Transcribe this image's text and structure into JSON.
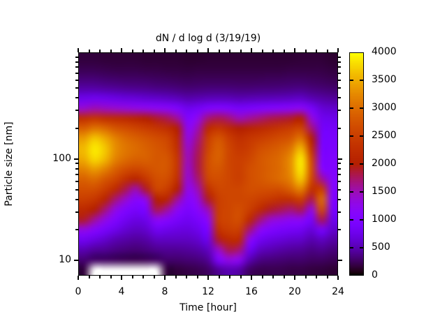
{
  "title": "dN / d log d (3/19/19)",
  "axes": {
    "x": {
      "label": "Time [hour]",
      "min": 0,
      "max": 24,
      "major_ticks": [
        0,
        4,
        8,
        12,
        16,
        20,
        24
      ],
      "minor_step": 1
    },
    "y": {
      "label": "Particle size [nm]",
      "scale": "log",
      "log_min_exp": 0.85,
      "log_max_exp": 3.05,
      "major_ticks": [
        10,
        100
      ],
      "minor_ticks": [
        20,
        30,
        40,
        50,
        60,
        70,
        80,
        90,
        200,
        300,
        400,
        500,
        600,
        700,
        800,
        900,
        1000
      ]
    }
  },
  "colorbar": {
    "min": 0,
    "max": 4000,
    "tick_labels": [
      0,
      500,
      1000,
      1500,
      2000,
      2500,
      3000,
      3500,
      4000
    ],
    "palette_name": "gnuplot black-purple-red-orange-yellow",
    "palette_stops": [
      "#000000",
      "#5a00b4",
      "#8004ff",
      "#9c0db4",
      "#b52000",
      "#c93e00",
      "#dd6b00",
      "#efab00",
      "#ffff00"
    ],
    "missing_color": "#ffffff"
  },
  "chart_data": {
    "type": "heatmap",
    "title": "dN / d log d (3/19/19)",
    "xlabel": "Time [hour]",
    "ylabel": "Particle size [nm]",
    "zlabel": "dN / d log d",
    "x_hours": [
      0,
      1,
      2,
      3,
      4,
      5,
      6,
      7,
      8,
      9,
      10,
      11,
      12,
      13,
      14,
      15,
      16,
      17,
      18,
      19,
      20,
      21,
      22,
      23,
      24
    ],
    "y_sizes_nm": [
      8,
      10,
      12.6,
      15.8,
      20,
      25,
      31.6,
      39.8,
      50,
      63,
      79,
      100,
      126,
      158,
      200,
      251,
      316,
      398,
      501,
      631,
      794,
      1000
    ],
    "zlim": [
      0,
      4000
    ],
    "note": "values[timeIndex][sizeIndex], sizes ascending; null = missing data (white)",
    "values": [
      [
        150,
        300,
        500,
        800,
        1300,
        1900,
        2200,
        2500,
        2700,
        2900,
        3200,
        3500,
        3600,
        3400,
        2900,
        2300,
        1400,
        750,
        450,
        300,
        200,
        150
      ],
      [
        null,
        260,
        420,
        700,
        1100,
        1600,
        2000,
        2400,
        2700,
        3000,
        3400,
        3800,
        3900,
        3700,
        3100,
        2400,
        1500,
        780,
        450,
        300,
        200,
        150
      ],
      [
        null,
        250,
        400,
        600,
        900,
        1300,
        1700,
        2100,
        2500,
        2800,
        3200,
        3600,
        3700,
        3500,
        3000,
        2300,
        1450,
        760,
        430,
        280,
        190,
        140
      ],
      [
        null,
        230,
        350,
        500,
        750,
        1000,
        1300,
        1700,
        2200,
        2600,
        2900,
        3200,
        3300,
        3200,
        2800,
        2250,
        1400,
        720,
        410,
        270,
        180,
        140
      ],
      [
        null,
        210,
        320,
        450,
        620,
        800,
        1000,
        1400,
        1800,
        2300,
        2700,
        3000,
        3100,
        3000,
        2700,
        2200,
        1350,
        680,
        390,
        260,
        180,
        140
      ],
      [
        null,
        200,
        300,
        420,
        560,
        700,
        900,
        1100,
        1500,
        2100,
        2600,
        2900,
        3000,
        2900,
        2600,
        2100,
        1300,
        660,
        380,
        260,
        180,
        140
      ],
      [
        null,
        220,
        330,
        450,
        600,
        750,
        950,
        1300,
        1900,
        2400,
        2700,
        2900,
        2900,
        2800,
        2500,
        2000,
        1250,
        620,
        370,
        250,
        170,
        130
      ],
      [
        null,
        250,
        380,
        550,
        800,
        1200,
        1800,
        2000,
        2600,
        2700,
        2800,
        2800,
        2800,
        2700,
        2400,
        1900,
        1200,
        600,
        350,
        240,
        170,
        130
      ],
      [
        150,
        280,
        400,
        550,
        750,
        1100,
        1600,
        2100,
        2500,
        2700,
        2800,
        2800,
        2700,
        2600,
        2300,
        1800,
        1150,
        570,
        340,
        230,
        160,
        130
      ],
      [
        150,
        280,
        400,
        550,
        700,
        900,
        1200,
        1600,
        2000,
        2300,
        2400,
        2400,
        2300,
        2200,
        2000,
        1600,
        1000,
        530,
        320,
        220,
        160,
        130
      ],
      [
        180,
        300,
        420,
        550,
        680,
        800,
        950,
        1100,
        1250,
        1350,
        1400,
        1450,
        1400,
        1300,
        1200,
        1000,
        780,
        480,
        300,
        210,
        150,
        120
      ],
      [
        200,
        320,
        450,
        600,
        750,
        900,
        1100,
        1300,
        1500,
        1700,
        1800,
        1800,
        1750,
        1650,
        1500,
        1250,
        850,
        500,
        310,
        220,
        160,
        120
      ],
      [
        250,
        400,
        550,
        750,
        950,
        1200,
        1500,
        1900,
        2300,
        2600,
        2700,
        2700,
        2600,
        2500,
        2200,
        1700,
        1000,
        520,
        320,
        220,
        160,
        130
      ],
      [
        400,
        1000,
        1400,
        1900,
        2300,
        2500,
        2500,
        2500,
        2600,
        2700,
        2800,
        2900,
        2900,
        2800,
        2400,
        1800,
        1050,
        530,
        320,
        220,
        160,
        130
      ],
      [
        500,
        1300,
        1800,
        2200,
        2500,
        2600,
        2600,
        2600,
        2600,
        2600,
        2600,
        2600,
        2600,
        2500,
        2200,
        1700,
        1000,
        520,
        320,
        220,
        160,
        130
      ],
      [
        450,
        1200,
        1700,
        2200,
        2500,
        2700,
        2700,
        2600,
        2600,
        2500,
        2500,
        2500,
        2400,
        2300,
        2000,
        1500,
        900,
        500,
        310,
        220,
        160,
        130
      ],
      [
        250,
        500,
        800,
        1200,
        1700,
        2200,
        2500,
        2600,
        2700,
        2700,
        2700,
        2600,
        2500,
        2400,
        2100,
        1600,
        950,
        510,
        310,
        220,
        160,
        130
      ],
      [
        200,
        350,
        550,
        800,
        1200,
        1700,
        2200,
        2500,
        2700,
        2800,
        2800,
        2800,
        2700,
        2500,
        2200,
        1700,
        1000,
        520,
        320,
        220,
        160,
        130
      ],
      [
        200,
        320,
        500,
        700,
        1000,
        1400,
        1900,
        2400,
        2700,
        2900,
        2900,
        2900,
        2800,
        2600,
        2300,
        1800,
        1050,
        530,
        320,
        230,
        160,
        130
      ],
      [
        200,
        300,
        450,
        650,
        900,
        1300,
        1800,
        2300,
        2700,
        3000,
        3000,
        3000,
        2900,
        2700,
        2400,
        1850,
        1100,
        540,
        330,
        230,
        160,
        130
      ],
      [
        180,
        280,
        420,
        600,
        850,
        1200,
        1700,
        2300,
        2900,
        3200,
        3300,
        3300,
        3100,
        2800,
        2500,
        1900,
        1150,
        560,
        340,
        240,
        170,
        130
      ],
      [
        180,
        280,
        400,
        580,
        800,
        1200,
        1800,
        2500,
        3200,
        3700,
        3900,
        3900,
        3600,
        3100,
        2600,
        2000,
        1200,
        580,
        350,
        240,
        170,
        140
      ],
      [
        160,
        250,
        350,
        480,
        650,
        900,
        1300,
        1800,
        2300,
        2600,
        2700,
        2600,
        2300,
        2000,
        1700,
        1350,
        900,
        500,
        320,
        230,
        170,
        140
      ],
      [
        150,
        250,
        380,
        550,
        900,
        1800,
        2700,
        3000,
        2500,
        1600,
        1100,
        1000,
        950,
        900,
        850,
        780,
        640,
        450,
        300,
        220,
        170,
        140
      ],
      [
        130,
        220,
        320,
        450,
        600,
        750,
        900,
        1000,
        1050,
        1050,
        1000,
        1000,
        950,
        900,
        850,
        750,
        600,
        420,
        280,
        200,
        150,
        120
      ]
    ]
  }
}
